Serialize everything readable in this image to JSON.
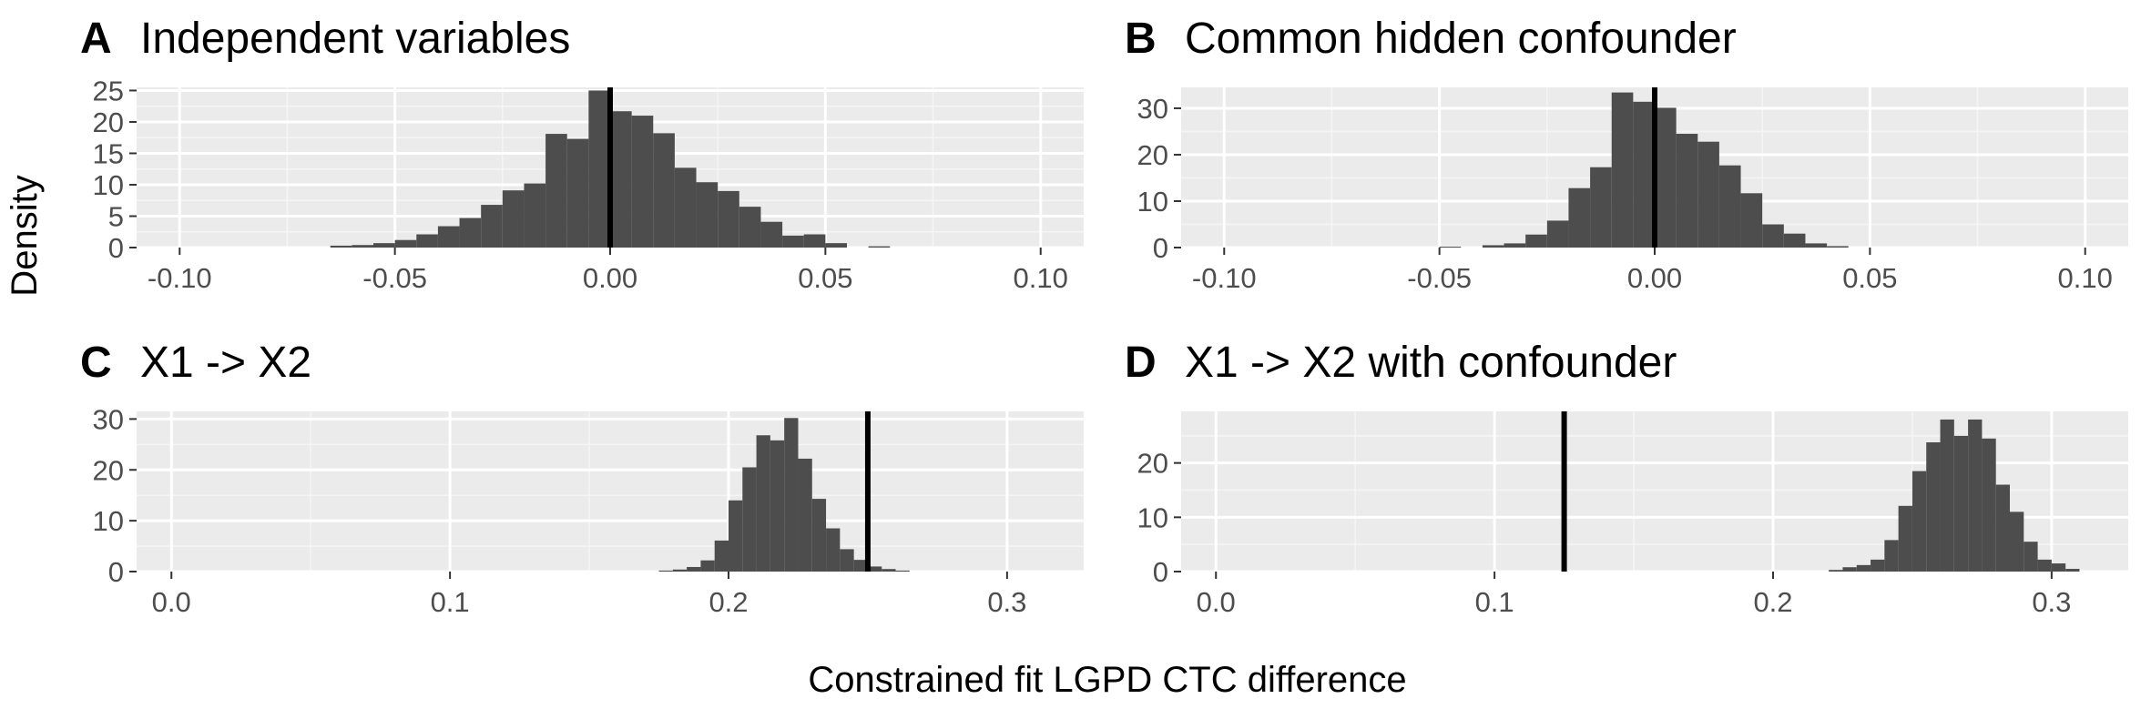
{
  "figure": {
    "ylabel": "Density",
    "xlabel": "Constrained fit LGPD CTC difference"
  },
  "colors": {
    "panel_bg": "#ebebeb",
    "grid_major": "#ffffff",
    "grid_minor": "#f5f5f5",
    "bar_fill": "#4d4d4d",
    "vline": "#000000",
    "tick_text": "#4d4d4d"
  },
  "chart_data": [
    {
      "type": "bar",
      "tag": "A",
      "title": "Independent variables",
      "xlim": [
        -0.11,
        0.11
      ],
      "ylim": [
        0,
        25.5
      ],
      "xticks": [
        -0.1,
        -0.05,
        0.0,
        0.05,
        0.1
      ],
      "xtick_labels": [
        "-0.10",
        "-0.05",
        "0.00",
        "0.05",
        "0.10"
      ],
      "yticks": [
        0,
        5,
        10,
        15,
        20,
        25
      ],
      "ytick_labels": [
        "0",
        "5",
        "10",
        "15",
        "20",
        "25"
      ],
      "vline": 0.0,
      "bin_width": 0.005,
      "bins_x": [
        -0.0625,
        -0.0575,
        -0.0525,
        -0.0475,
        -0.0425,
        -0.0375,
        -0.0325,
        -0.0275,
        -0.0225,
        -0.0175,
        -0.0125,
        -0.0075,
        -0.0025,
        0.0025,
        0.0075,
        0.0125,
        0.0175,
        0.0225,
        0.0275,
        0.0325,
        0.0375,
        0.0425,
        0.0475,
        0.0525,
        0.0625
      ],
      "density": [
        0.3,
        0.4,
        0.7,
        1.2,
        2.1,
        3.4,
        4.7,
        6.8,
        9.1,
        10.2,
        18.1,
        17.3,
        25.0,
        21.7,
        21.0,
        18.2,
        12.7,
        10.4,
        9.0,
        6.5,
        4.1,
        1.9,
        2.1,
        0.7,
        0.2
      ]
    },
    {
      "type": "bar",
      "tag": "B",
      "title": "Common hidden confounder",
      "xlim": [
        -0.11,
        0.11
      ],
      "ylim": [
        0,
        34.5
      ],
      "xticks": [
        -0.1,
        -0.05,
        0.0,
        0.05,
        0.1
      ],
      "xtick_labels": [
        "-0.10",
        "-0.05",
        "0.00",
        "0.05",
        "0.10"
      ],
      "yticks": [
        0,
        10,
        20,
        30
      ],
      "ytick_labels": [
        "0",
        "10",
        "20",
        "30"
      ],
      "vline": 0.0,
      "bin_width": 0.005,
      "bins_x": [
        -0.0475,
        -0.0375,
        -0.0325,
        -0.0275,
        -0.0225,
        -0.0175,
        -0.0125,
        -0.0075,
        -0.0025,
        0.0025,
        0.0075,
        0.0125,
        0.0175,
        0.0225,
        0.0275,
        0.0325,
        0.0375,
        0.0425
      ],
      "density": [
        0.2,
        0.5,
        0.9,
        2.8,
        5.8,
        12.8,
        17.3,
        33.4,
        31.4,
        30.1,
        24.5,
        22.8,
        17.7,
        11.7,
        5.0,
        3.0,
        0.9,
        0.3
      ]
    },
    {
      "type": "bar",
      "tag": "C",
      "title": "X1 -> X2",
      "xlim": [
        -0.0125,
        0.3275
      ],
      "ylim": [
        0,
        31.5
      ],
      "xticks": [
        0.0,
        0.1,
        0.2,
        0.3
      ],
      "xtick_labels": [
        "0.0",
        "0.1",
        "0.2",
        "0.3"
      ],
      "yticks": [
        0,
        10,
        20,
        30
      ],
      "ytick_labels": [
        "0",
        "10",
        "20",
        "30"
      ],
      "vline": 0.25,
      "bin_width": 0.005,
      "bins_x": [
        0.1775,
        0.1825,
        0.1875,
        0.1925,
        0.1975,
        0.2025,
        0.2075,
        0.2125,
        0.2175,
        0.2225,
        0.2275,
        0.2325,
        0.2375,
        0.2425,
        0.2475,
        0.2525,
        0.2575,
        0.2625
      ],
      "density": [
        0.2,
        0.4,
        0.9,
        2.2,
        6.1,
        14.0,
        20.5,
        26.8,
        25.8,
        30.2,
        22.2,
        14.3,
        8.5,
        4.4,
        2.3,
        1.0,
        0.5,
        0.2
      ]
    },
    {
      "type": "bar",
      "tag": "D",
      "title": "X1 -> X2 with confounder",
      "xlim": [
        -0.0125,
        0.3275
      ],
      "ylim": [
        0,
        29.5
      ],
      "xticks": [
        0.0,
        0.1,
        0.2,
        0.3
      ],
      "xtick_labels": [
        "0.0",
        "0.1",
        "0.2",
        "0.3"
      ],
      "yticks": [
        0,
        10,
        20
      ],
      "ytick_labels": [
        "0",
        "10",
        "20"
      ],
      "vline": 0.125,
      "bin_width": 0.005,
      "bins_x": [
        0.2225,
        0.2275,
        0.2325,
        0.2375,
        0.2425,
        0.2475,
        0.2525,
        0.2575,
        0.2625,
        0.2675,
        0.2725,
        0.2775,
        0.2825,
        0.2875,
        0.2925,
        0.2975,
        0.3025,
        0.3075
      ],
      "density": [
        0.3,
        0.8,
        1.2,
        2.2,
        5.8,
        12.1,
        18.5,
        23.8,
        28.0,
        25.0,
        28.0,
        24.5,
        16.0,
        11.0,
        5.5,
        2.2,
        1.5,
        0.5
      ]
    }
  ]
}
